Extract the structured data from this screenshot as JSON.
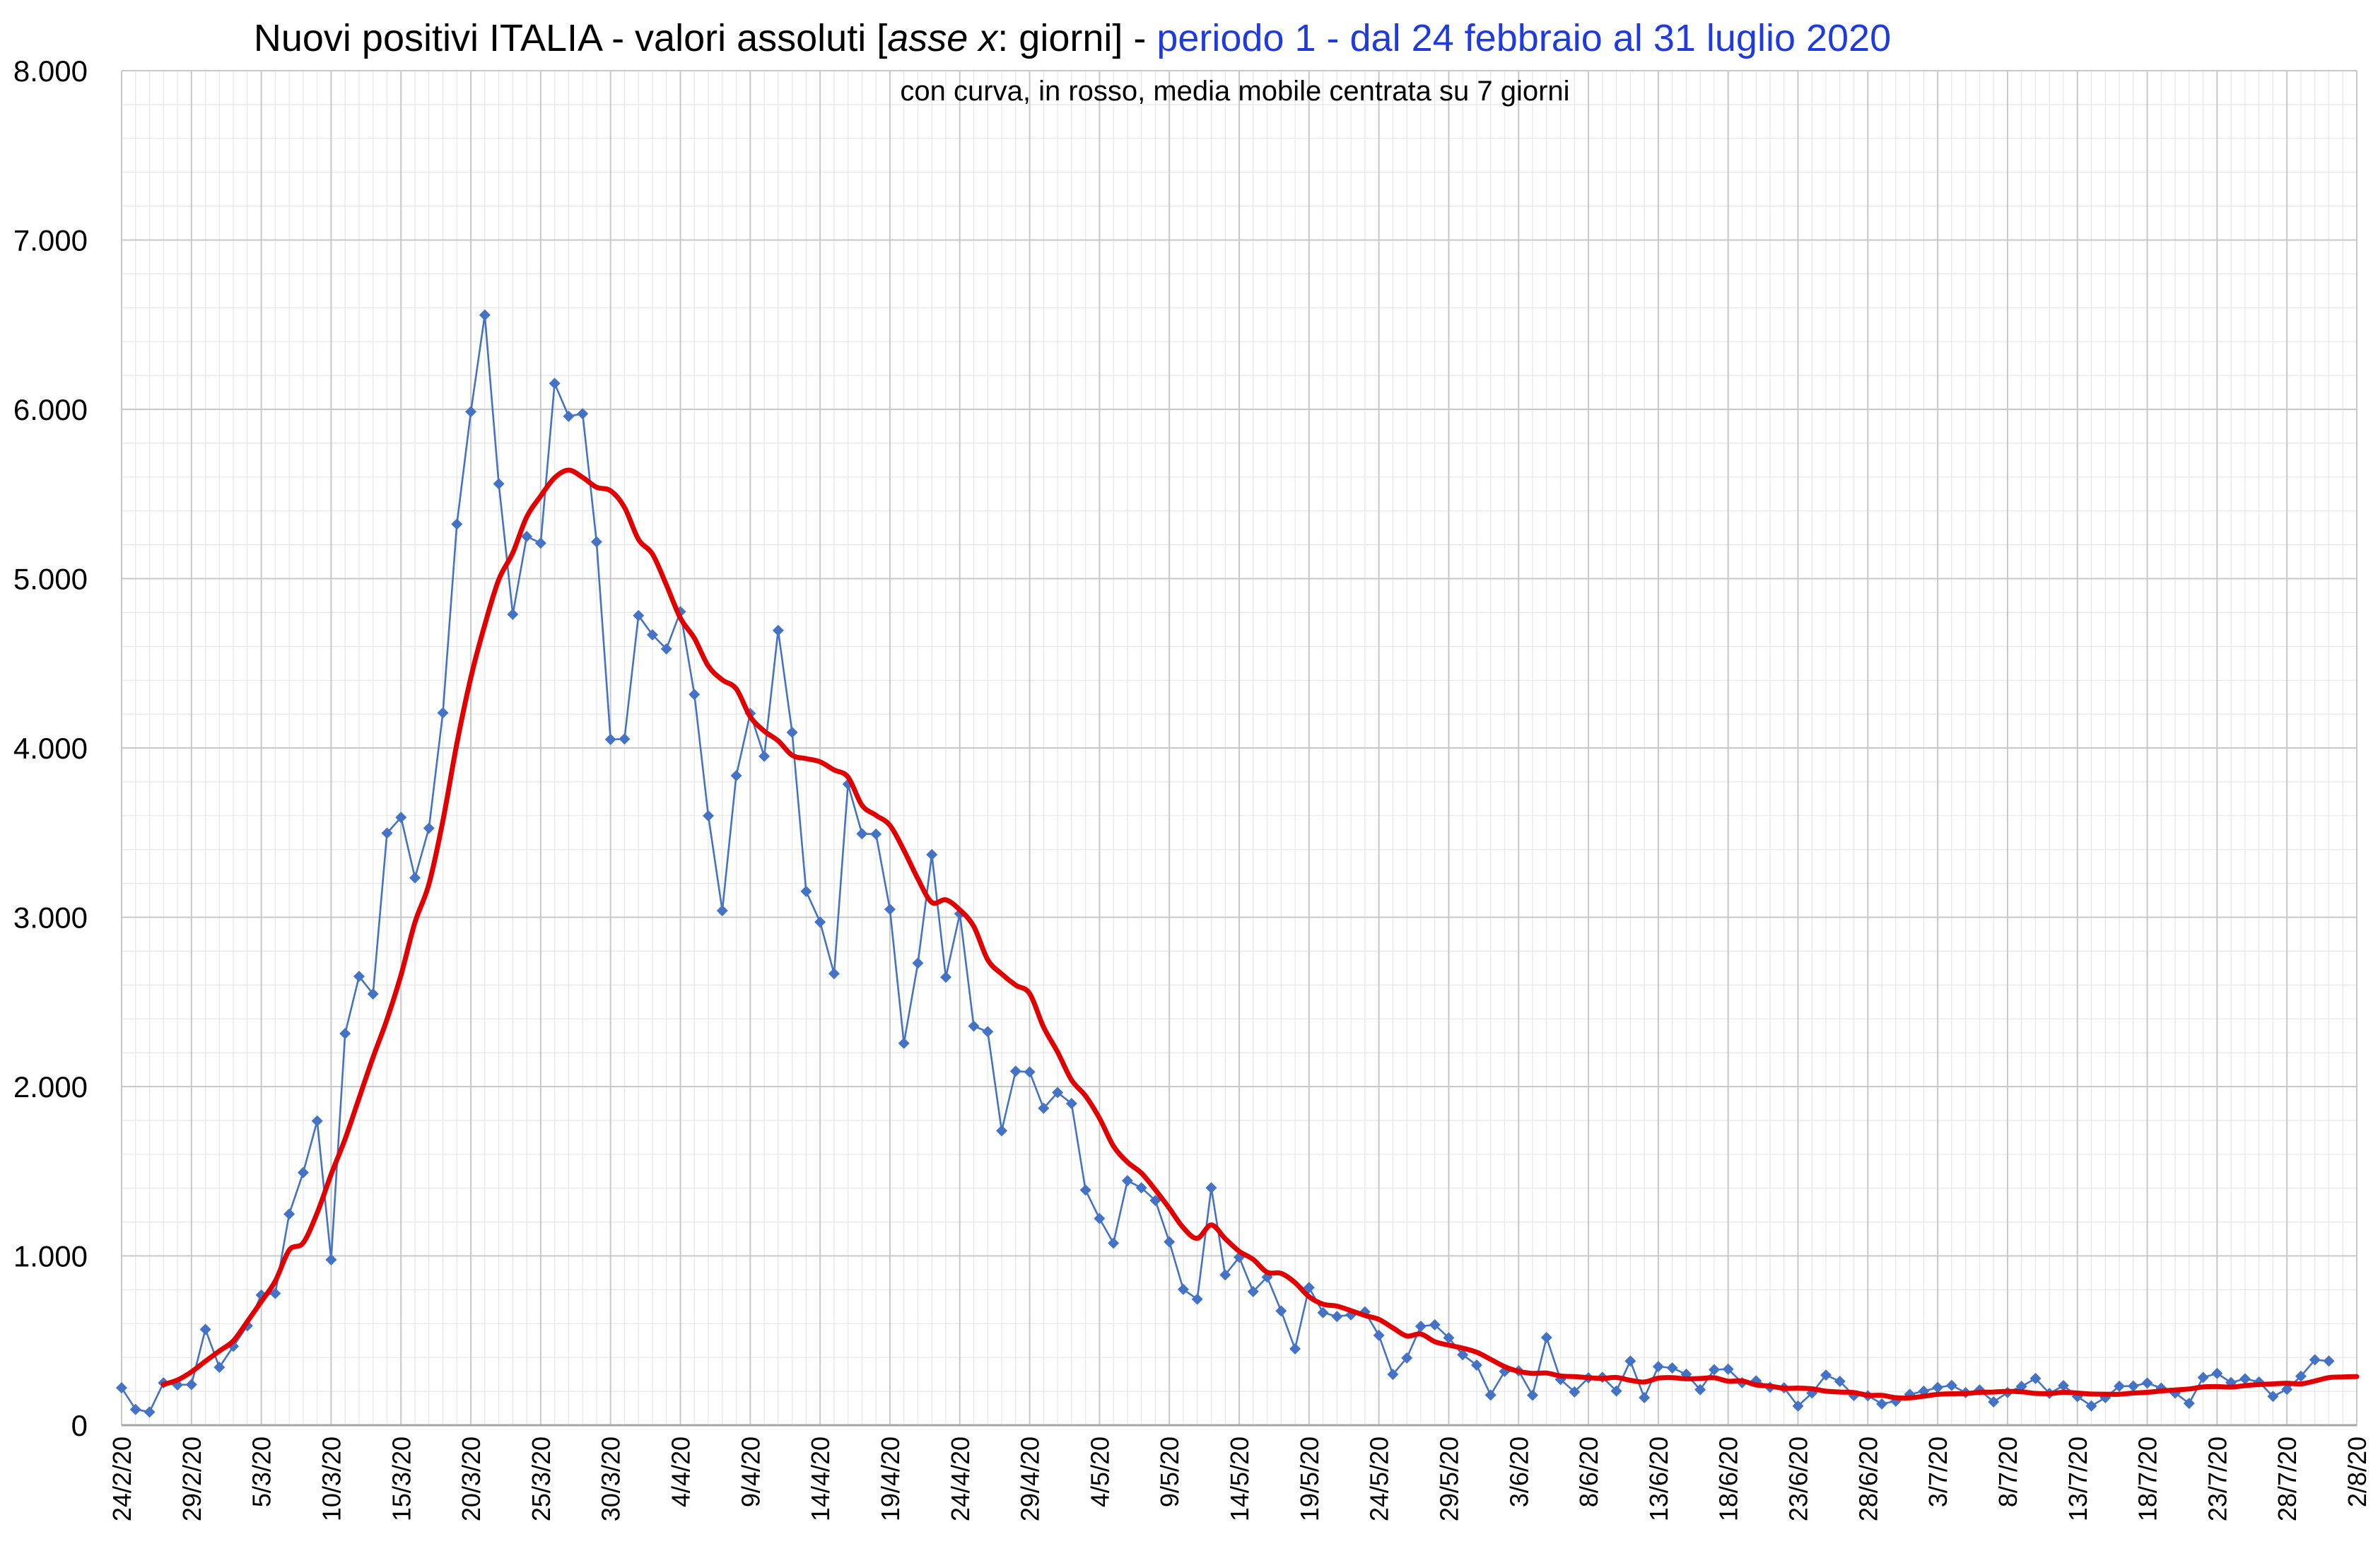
{
  "chart_data": {
    "type": "line",
    "title_parts": [
      {
        "text": "Nuovi positivi ITALIA - valori assoluti [",
        "style": "normal"
      },
      {
        "text": "asse x",
        "style": "italic"
      },
      {
        "text": ": giorni] - ",
        "style": "normal"
      },
      {
        "text": "periodo 1 - dal 24 febbraio al 31 luglio 2020",
        "style": "blue"
      }
    ],
    "subtitle": "con curva, in rosso, media mobile centrata su 7 giorni",
    "colors": {
      "daily": "#4472c4",
      "moving_average": "#e00000",
      "grid_major": "#c8c8c8",
      "grid_minor": "#e6e6e6",
      "title_highlight": "#1f3be0"
    },
    "x_start": "24/2/20",
    "xlim": [
      "24/2/20",
      "2/8/20"
    ],
    "x_tick_labels": [
      "24/2/20",
      "29/2/20",
      "5/3/20",
      "10/3/20",
      "15/3/20",
      "20/3/20",
      "25/3/20",
      "30/3/20",
      "4/4/20",
      "9/4/20",
      "14/4/20",
      "19/4/20",
      "24/4/20",
      "29/4/20",
      "4/5/20",
      "9/5/20",
      "14/5/20",
      "19/5/20",
      "24/5/20",
      "29/5/20",
      "3/6/20",
      "8/6/20",
      "13/6/20",
      "18/6/20",
      "23/6/20",
      "28/6/20",
      "3/7/20",
      "8/7/20",
      "13/7/20",
      "18/7/20",
      "23/7/20",
      "28/7/20",
      "2/8/20"
    ],
    "ylim": [
      0,
      8000
    ],
    "y_tick_labels": [
      "0",
      "1.000",
      "2.000",
      "3.000",
      "4.000",
      "5.000",
      "6.000",
      "7.000",
      "8.000"
    ],
    "grid": true,
    "series": [
      {
        "kind": "daily",
        "values": [
          221,
          93,
          78,
          250,
          238,
          240,
          566,
          342,
          466,
          587,
          769,
          778,
          1247,
          1492,
          1797,
          977,
          2313,
          2651,
          2547,
          3497,
          3590,
          3233,
          3526,
          4207,
          5322,
          5986,
          6557,
          5560,
          4789,
          5249,
          5210,
          6153,
          5959,
          5974,
          5217,
          4050,
          4053,
          4782,
          4668,
          4585,
          4805,
          4316,
          3599,
          3039,
          3836,
          4204,
          3951,
          4694,
          4092,
          3153,
          2972,
          2667,
          3786,
          3493,
          3491,
          3047,
          2256,
          2729,
          3370,
          2646,
          3021,
          2357,
          2324,
          1739,
          2091,
          2086,
          1872,
          1965,
          1900,
          1389,
          1221,
          1075,
          1444,
          1402,
          1327,
          1083,
          802,
          744,
          1402,
          888,
          992,
          789,
          875,
          675,
          451,
          813,
          665,
          642,
          652,
          669,
          531,
          300,
          397,
          584,
          593,
          516,
          416,
          355,
          178,
          318,
          321,
          177,
          518,
          270,
          197,
          280,
          283,
          202,
          379,
          163,
          346,
          338,
          301,
          210,
          328,
          331,
          251,
          262,
          224,
          221,
          113,
          190,
          296,
          259,
          175,
          174,
          126,
          142,
          182,
          201,
          223,
          235,
          192,
          208,
          138,
          193,
          229,
          276,
          188,
          234,
          169,
          114,
          163,
          230,
          231,
          249,
          219,
          190,
          129,
          282,
          306,
          252,
          274,
          255,
          170,
          212,
          289,
          386,
          379
        ],
        "color": "#4472c4"
      },
      {
        "kind": "moving_average",
        "start_index": 3,
        "values": [
          240,
          267,
          315,
          378,
          438,
          498,
          612,
          730,
          851,
          1034,
          1077,
          1254,
          1481,
          1690,
          1932,
          2172,
          2397,
          2659,
          2969,
          3196,
          3569,
          4026,
          4416,
          4727,
          4994,
          5152,
          5364,
          5488,
          5596,
          5641,
          5598,
          5540,
          5519,
          5421,
          5232,
          5145,
          4963,
          4767,
          4648,
          4484,
          4402,
          4349,
          4185,
          4100,
          4042,
          3957,
          3937,
          3918,
          3870,
          3828,
          3662,
          3602,
          3543,
          3396,
          3227,
          3088,
          3103,
          3044,
          2946,
          2749,
          2665,
          2599,
          2549,
          2351,
          2204,
          2039,
          1945,
          1813,
          1649,
          1554,
          1489,
          1390,
          1281,
          1166,
          1104,
          1183,
          1102,
          1027,
          979,
          903,
          897,
          842,
          759,
          715,
          703,
          677,
          648,
          625,
          575,
          527,
          539,
          493,
          473,
          455,
          431,
          389,
          346,
          318,
          306,
          308,
          291,
          287,
          281,
          276,
          282,
          265,
          255,
          278,
          281,
          274,
          276,
          280,
          260,
          262,
          238,
          231,
          218,
          219,
          215,
          201,
          196,
          193,
          177,
          176,
          163,
          161,
          171,
          182,
          186,
          187,
          194,
          196,
          200,
          197,
          188,
          187,
          194,
          190,
          184,
          183,
          183,
          190,
          194,
          202,
          208,
          214,
          226,
          228,
          225,
          234,
          240,
          244,
          248,
          244,
          261,
          281,
          285,
          287
        ]
      }
    ]
  }
}
